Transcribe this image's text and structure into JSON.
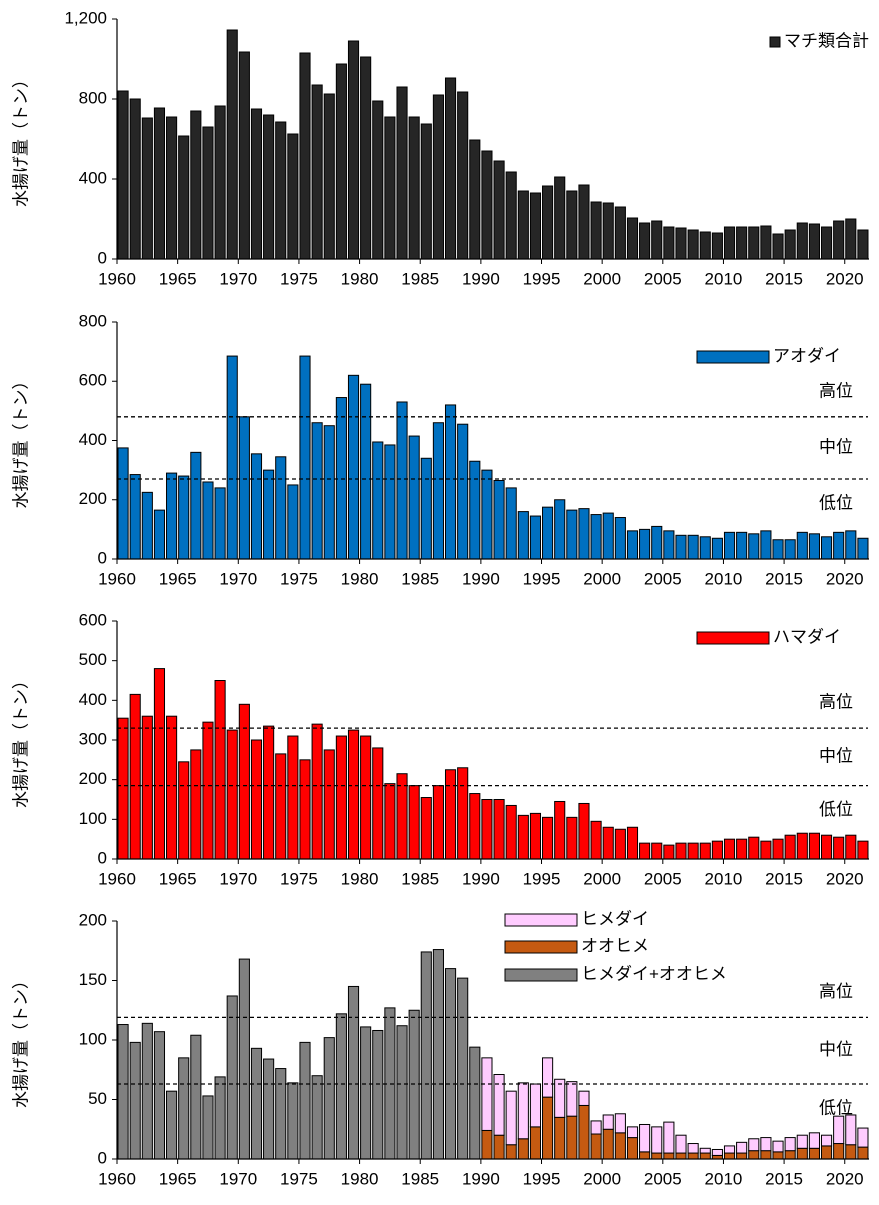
{
  "chart_data": [
    {
      "type": "bar",
      "y_label": "水揚げ量（トン）",
      "x": [
        1960,
        1961,
        1962,
        1963,
        1964,
        1965,
        1966,
        1967,
        1968,
        1969,
        1970,
        1971,
        1972,
        1973,
        1974,
        1975,
        1976,
        1977,
        1978,
        1979,
        1980,
        1981,
        1982,
        1983,
        1984,
        1985,
        1986,
        1987,
        1988,
        1989,
        1990,
        1991,
        1992,
        1993,
        1994,
        1995,
        1996,
        1997,
        1998,
        1999,
        2000,
        2001,
        2002,
        2003,
        2004,
        2005,
        2006,
        2007,
        2008,
        2009,
        2010,
        2011,
        2012,
        2013,
        2014,
        2015,
        2016,
        2017,
        2018,
        2019,
        2020,
        2021
      ],
      "series": [
        {
          "name": "マチ類合計",
          "color": "#262626",
          "values": [
            840,
            800,
            705,
            755,
            710,
            615,
            740,
            660,
            765,
            1145,
            1035,
            750,
            720,
            685,
            625,
            1030,
            870,
            825,
            975,
            1090,
            1010,
            790,
            710,
            860,
            710,
            675,
            820,
            905,
            835,
            595,
            540,
            490,
            435,
            340,
            330,
            365,
            410,
            340,
            370,
            285,
            280,
            260,
            205,
            180,
            190,
            160,
            155,
            145,
            135,
            130,
            160,
            160,
            160,
            165,
            125,
            145,
            180,
            175,
            160,
            190,
            200,
            145
          ]
        }
      ],
      "xlim": [
        1960,
        2022
      ],
      "xticks": [
        1960,
        1965,
        1970,
        1975,
        1980,
        1985,
        1990,
        1995,
        2000,
        2005,
        2010,
        2015,
        2020
      ],
      "ylim": [
        0,
        1200
      ],
      "yticks": [
        0,
        400,
        800,
        {
          "value": 1200,
          "label": "1,200"
        }
      ],
      "legend": "upper right"
    },
    {
      "type": "bar",
      "y_label": "水揚げ量（トン）",
      "x": [
        1960,
        1961,
        1962,
        1963,
        1964,
        1965,
        1966,
        1967,
        1968,
        1969,
        1970,
        1971,
        1972,
        1973,
        1974,
        1975,
        1976,
        1977,
        1978,
        1979,
        1980,
        1981,
        1982,
        1983,
        1984,
        1985,
        1986,
        1987,
        1988,
        1989,
        1990,
        1991,
        1992,
        1993,
        1994,
        1995,
        1996,
        1997,
        1998,
        1999,
        2000,
        2001,
        2002,
        2003,
        2004,
        2005,
        2006,
        2007,
        2008,
        2009,
        2010,
        2011,
        2012,
        2013,
        2014,
        2015,
        2016,
        2017,
        2018,
        2019,
        2020,
        2021
      ],
      "series": [
        {
          "name": "アオダイ",
          "color": "#0070c0",
          "values": [
            375,
            285,
            225,
            165,
            290,
            280,
            360,
            260,
            240,
            685,
            480,
            355,
            300,
            345,
            250,
            685,
            460,
            450,
            545,
            620,
            590,
            395,
            385,
            530,
            415,
            340,
            460,
            520,
            455,
            330,
            300,
            265,
            240,
            160,
            145,
            175,
            200,
            165,
            170,
            150,
            155,
            140,
            95,
            100,
            110,
            95,
            80,
            80,
            75,
            70,
            90,
            90,
            85,
            95,
            65,
            65,
            90,
            85,
            75,
            90,
            95,
            70
          ]
        }
      ],
      "xlim": [
        1960,
        2022
      ],
      "xticks": [
        1960,
        1965,
        1970,
        1975,
        1980,
        1985,
        1990,
        1995,
        2000,
        2005,
        2010,
        2015,
        2020
      ],
      "ylim": [
        0,
        800
      ],
      "yticks": [
        0,
        200,
        400,
        600,
        800
      ],
      "thresholds": [
        480,
        270
      ],
      "level_labels": [
        "高位",
        "中位",
        "低位"
      ],
      "legend": "upper right"
    },
    {
      "type": "bar",
      "y_label": "水揚げ量（トン）",
      "x": [
        1960,
        1961,
        1962,
        1963,
        1964,
        1965,
        1966,
        1967,
        1968,
        1969,
        1970,
        1971,
        1972,
        1973,
        1974,
        1975,
        1976,
        1977,
        1978,
        1979,
        1980,
        1981,
        1982,
        1983,
        1984,
        1985,
        1986,
        1987,
        1988,
        1989,
        1990,
        1991,
        1992,
        1993,
        1994,
        1995,
        1996,
        1997,
        1998,
        1999,
        2000,
        2001,
        2002,
        2003,
        2004,
        2005,
        2006,
        2007,
        2008,
        2009,
        2010,
        2011,
        2012,
        2013,
        2014,
        2015,
        2016,
        2017,
        2018,
        2019,
        2020,
        2021
      ],
      "series": [
        {
          "name": "ハマダイ",
          "color": "#ff0000",
          "values": [
            355,
            415,
            360,
            480,
            360,
            245,
            275,
            345,
            450,
            325,
            390,
            300,
            335,
            265,
            310,
            250,
            340,
            275,
            310,
            325,
            310,
            280,
            190,
            215,
            185,
            155,
            185,
            225,
            230,
            165,
            150,
            150,
            135,
            110,
            115,
            105,
            145,
            105,
            140,
            95,
            80,
            75,
            80,
            40,
            40,
            35,
            40,
            40,
            40,
            45,
            50,
            50,
            55,
            45,
            50,
            60,
            65,
            65,
            60,
            55,
            60,
            45
          ]
        }
      ],
      "xlim": [
        1960,
        2022
      ],
      "xticks": [
        1960,
        1965,
        1970,
        1975,
        1980,
        1985,
        1990,
        1995,
        2000,
        2005,
        2010,
        2015,
        2020
      ],
      "ylim": [
        0,
        600
      ],
      "yticks": [
        0,
        100,
        200,
        300,
        400,
        500,
        600
      ],
      "thresholds": [
        330,
        185
      ],
      "level_labels": [
        "高位",
        "中位",
        "低位"
      ],
      "legend": "upper right"
    },
    {
      "type": "stacked_bar",
      "y_label": "水揚げ量（トン）",
      "x": [
        1960,
        1961,
        1962,
        1963,
        1964,
        1965,
        1966,
        1967,
        1968,
        1969,
        1970,
        1971,
        1972,
        1973,
        1974,
        1975,
        1976,
        1977,
        1978,
        1979,
        1980,
        1981,
        1982,
        1983,
        1984,
        1985,
        1986,
        1987,
        1988,
        1989,
        1990,
        1991,
        1992,
        1993,
        1994,
        1995,
        1996,
        1997,
        1998,
        1999,
        2000,
        2001,
        2002,
        2003,
        2004,
        2005,
        2006,
        2007,
        2008,
        2009,
        2010,
        2011,
        2012,
        2013,
        2014,
        2015,
        2016,
        2017,
        2018,
        2019,
        2020,
        2021
      ],
      "series": [
        {
          "name": "ヒメダイ",
          "color": "#ffccff",
          "values": [
            null,
            null,
            null,
            null,
            null,
            null,
            null,
            null,
            null,
            null,
            null,
            null,
            null,
            null,
            null,
            null,
            null,
            null,
            null,
            null,
            null,
            null,
            null,
            null,
            null,
            null,
            null,
            null,
            null,
            null,
            61,
            51,
            45,
            47,
            36,
            33,
            32,
            29,
            12,
            11,
            12,
            16,
            9,
            23,
            22,
            26,
            15,
            8,
            4,
            5,
            6,
            9,
            10,
            11,
            9,
            11,
            11,
            13,
            9,
            23,
            25,
            16
          ]
        },
        {
          "name": "オオヒメ",
          "color": "#c55a11",
          "values": [
            null,
            null,
            null,
            null,
            null,
            null,
            null,
            null,
            null,
            null,
            null,
            null,
            null,
            null,
            null,
            null,
            null,
            null,
            null,
            null,
            null,
            null,
            null,
            null,
            null,
            null,
            null,
            null,
            null,
            null,
            24,
            20,
            12,
            17,
            27,
            52,
            35,
            36,
            45,
            21,
            25,
            22,
            18,
            6,
            5,
            5,
            5,
            5,
            5,
            3,
            5,
            5,
            7,
            7,
            6,
            7,
            9,
            9,
            11,
            13,
            12,
            10
          ]
        },
        {
          "name": "ヒメダイ+オオヒメ",
          "color": "#808080",
          "values": [
            113,
            98,
            114,
            107,
            57,
            85,
            104,
            53,
            69,
            137,
            168,
            93,
            84,
            76,
            64,
            98,
            70,
            102,
            122,
            145,
            111,
            108,
            127,
            112,
            125,
            174,
            176,
            160,
            152,
            94,
            null,
            null,
            null,
            null,
            null,
            null,
            null,
            null,
            null,
            null,
            null,
            null,
            null,
            null,
            null,
            null,
            null,
            null,
            null,
            null,
            null,
            null,
            null,
            null,
            null,
            null,
            null,
            null,
            null,
            null,
            null,
            null
          ]
        }
      ],
      "xlim": [
        1960,
        2022
      ],
      "xticks": [
        1960,
        1965,
        1970,
        1975,
        1980,
        1985,
        1990,
        1995,
        2000,
        2005,
        2010,
        2015,
        2020
      ],
      "ylim": [
        0,
        200
      ],
      "yticks": [
        0,
        50,
        100,
        150,
        200
      ],
      "thresholds": [
        119,
        63
      ],
      "level_labels": [
        "高位",
        "中位",
        "低位"
      ],
      "legend": "upper right"
    }
  ]
}
